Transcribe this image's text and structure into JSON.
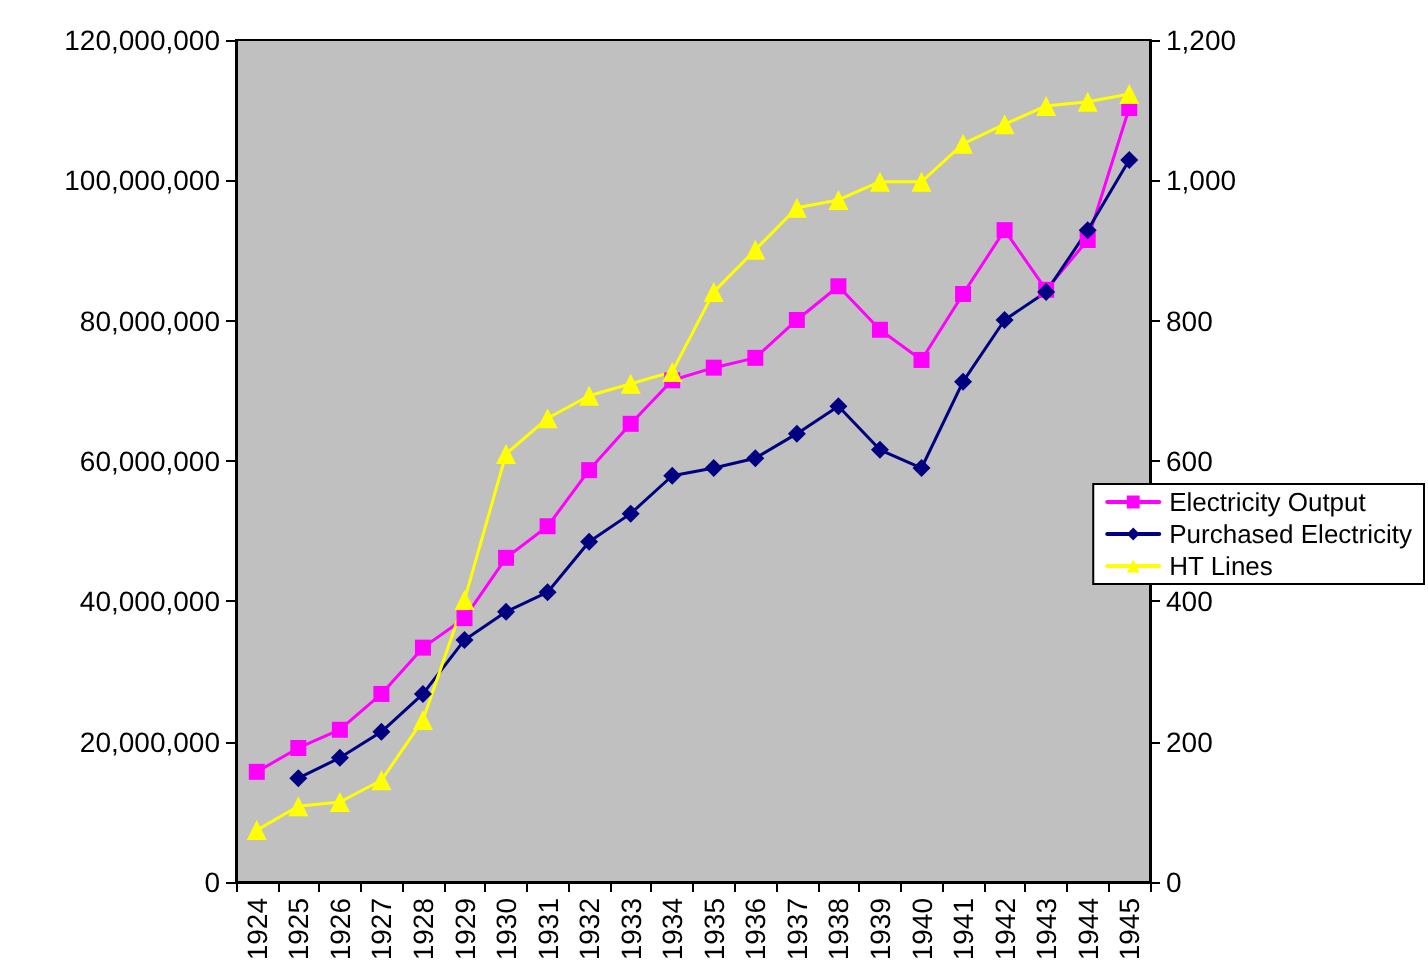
{
  "chart_data": {
    "type": "line",
    "categories": [
      "1924",
      "1925",
      "1926",
      "1927",
      "1928",
      "1929",
      "1930",
      "1931",
      "1932",
      "1933",
      "1934",
      "1935",
      "1936",
      "1937",
      "1938",
      "1939",
      "1940",
      "1941",
      "1942",
      "1943",
      "1944",
      "1945"
    ],
    "series": [
      {
        "name": "Electricity Output",
        "color": "#ff00ff",
        "marker": "square",
        "values": [
          15700000,
          19100000,
          21700000,
          26800000,
          33400000,
          37600000,
          46200000,
          50700000,
          58700000,
          65300000,
          71500000,
          73300000,
          74700000,
          80100000,
          84900000,
          78700000,
          74400000,
          83800000,
          92900000,
          84400000,
          91500000,
          110300000
        ]
      },
      {
        "name": "Purchased Electricity",
        "color": "#000080",
        "marker": "diamond",
        "values": [
          null,
          14800000,
          17700000,
          21400000,
          26800000,
          34500000,
          38500000,
          41300000,
          48500000,
          52500000,
          57900000,
          59000000,
          60400000,
          63900000,
          67800000,
          61600000,
          59000000,
          71300000,
          80100000,
          84100000,
          92900000,
          102900000
        ]
      },
      {
        "name": "HT Lines",
        "color": "#ffff00",
        "marker": "triangle",
        "axis": "y2",
        "values": [
          74,
          108,
          114,
          145,
          231,
          402,
          610,
          661,
          693,
          710,
          727,
          841,
          901,
          961,
          972,
          998,
          998,
          1052,
          1080,
          1106,
          1112,
          1123
        ]
      }
    ],
    "ylim": [
      0,
      120000000
    ],
    "yticks": [
      {
        "value": 0,
        "label": "0"
      },
      {
        "value": 20000000,
        "label": "20,000,000"
      },
      {
        "value": 40000000,
        "label": "40,000,000"
      },
      {
        "value": 60000000,
        "label": "60,000,000"
      },
      {
        "value": 80000000,
        "label": "80,000,000"
      },
      {
        "value": 100000000,
        "label": "100,000,000"
      },
      {
        "value": 120000000,
        "label": "120,000,000"
      }
    ],
    "y2lim": [
      0,
      1200
    ],
    "y2ticks": [
      0,
      200,
      400,
      600,
      800,
      {
        "value": 1000,
        "label": "1,000"
      },
      {
        "value": 1200,
        "label": "1,200"
      }
    ],
    "legend": "right",
    "grid": false
  }
}
